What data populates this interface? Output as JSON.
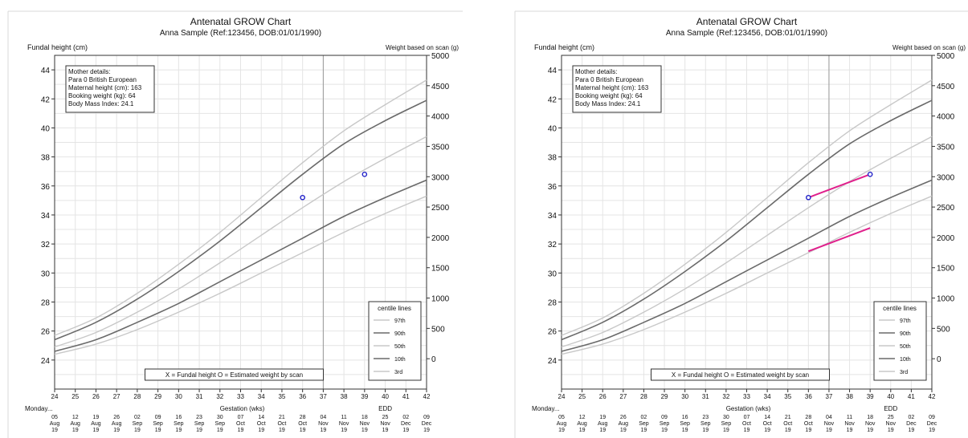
{
  "charts": [
    {
      "title": "Antenatal GROW Chart",
      "subtitle": "Anna Sample (Ref:123456, DOB:01/01/1990)",
      "left_axis_label": "Fundal height (cm)",
      "right_axis_label": "Weight based on scan (g)",
      "mother": {
        "heading": "Mother details:",
        "lines": [
          "Para 0  British European",
          "Maternal height (cm): 163",
          "Booking weight (kg): 64",
          "Body Mass Index: 24.1"
        ]
      },
      "bottom_legend": "X = Fundal height     O = Estimated weight by scan",
      "xlabel": "Gestation (wks)",
      "monday_label": "Monday...",
      "edd_label": "EDD",
      "centile_legend": {
        "heading": "centile lines",
        "items": [
          "97th",
          "90th",
          "50th",
          "10th",
          "3rd"
        ]
      }
    },
    {
      "title": "Antenatal GROW Chart",
      "subtitle": "Anna Sample (Ref:123456, DOB:01/01/1990)",
      "left_axis_label": "Fundal height (cm)",
      "right_axis_label": "Weight based on scan (g)",
      "mother": {
        "heading": "Mother details:",
        "lines": [
          "Para 0  British European",
          "Maternal height (cm): 163",
          "Booking weight (kg): 64",
          "Body Mass Index: 24.1"
        ]
      },
      "bottom_legend": "X = Fundal height     O = Estimated weight by scan",
      "xlabel": "Gestation (wks)",
      "monday_label": "Monday...",
      "edd_label": "EDD",
      "centile_legend": {
        "heading": "centile lines",
        "items": [
          "97th",
          "90th",
          "50th",
          "10th",
          "3rd"
        ]
      }
    }
  ],
  "chart_data": [
    {
      "type": "line",
      "xlim": [
        24,
        42
      ],
      "ylim_left": [
        22,
        45
      ],
      "ylim_right": [
        -500,
        5000
      ],
      "x_ticks": [
        24,
        25,
        26,
        27,
        28,
        29,
        30,
        31,
        32,
        33,
        34,
        35,
        36,
        37,
        38,
        39,
        40,
        41,
        42
      ],
      "y_ticks_left": [
        24,
        26,
        28,
        30,
        32,
        34,
        36,
        38,
        40,
        42,
        44
      ],
      "y_ticks_right": [
        0,
        500,
        1000,
        1500,
        2000,
        2500,
        3000,
        3500,
        4000,
        4500,
        5000
      ],
      "dates": [
        [
          "05",
          "Aug",
          "19"
        ],
        [
          "12",
          "Aug",
          "19"
        ],
        [
          "19",
          "Aug",
          "19"
        ],
        [
          "26",
          "Aug",
          "19"
        ],
        [
          "02",
          "Sep",
          "19"
        ],
        [
          "09",
          "Sep",
          "19"
        ],
        [
          "16",
          "Sep",
          "19"
        ],
        [
          "23",
          "Sep",
          "19"
        ],
        [
          "30",
          "Sep",
          "19"
        ],
        [
          "07",
          "Oct",
          "19"
        ],
        [
          "14",
          "Oct",
          "19"
        ],
        [
          "21",
          "Oct",
          "19"
        ],
        [
          "28",
          "Oct",
          "19"
        ],
        [
          "04",
          "Nov",
          "19"
        ],
        [
          "11",
          "Nov",
          "19"
        ],
        [
          "18",
          "Nov",
          "19"
        ],
        [
          "25",
          "Nov",
          "19"
        ],
        [
          "02",
          "Dec",
          "19"
        ],
        [
          "09",
          "Dec",
          "19"
        ]
      ],
      "centiles": [
        {
          "name": "97th",
          "color": "#c8c8c8",
          "x": [
            24,
            26,
            28,
            30,
            32,
            34,
            36,
            38,
            40,
            42
          ],
          "y": [
            25.7,
            26.9,
            28.6,
            30.6,
            32.8,
            35.2,
            37.6,
            39.8,
            41.6,
            43.3
          ]
        },
        {
          "name": "90th",
          "color": "#6a6a6a",
          "x": [
            24,
            26,
            28,
            30,
            32,
            34,
            36,
            38,
            40,
            42
          ],
          "y": [
            25.4,
            26.6,
            28.2,
            30.1,
            32.2,
            34.5,
            36.8,
            38.9,
            40.5,
            41.9
          ]
        },
        {
          "name": "50th",
          "color": "#c8c8c8",
          "x": [
            24,
            26,
            28,
            30,
            32,
            34,
            36,
            38,
            40,
            42
          ],
          "y": [
            24.9,
            25.9,
            27.3,
            28.9,
            30.7,
            32.6,
            34.5,
            36.3,
            37.9,
            39.4
          ]
        },
        {
          "name": "10th",
          "color": "#6a6a6a",
          "x": [
            24,
            26,
            28,
            30,
            32,
            34,
            36,
            38,
            40,
            42
          ],
          "y": [
            24.6,
            25.4,
            26.6,
            27.9,
            29.4,
            30.9,
            32.4,
            33.9,
            35.2,
            36.4
          ]
        },
        {
          "name": "3rd",
          "color": "#c8c8c8",
          "x": [
            24,
            26,
            28,
            30,
            32,
            34,
            36,
            38,
            40,
            42
          ],
          "y": [
            24.4,
            25.1,
            26.1,
            27.3,
            28.6,
            30.0,
            31.4,
            32.8,
            34.1,
            35.3
          ]
        }
      ],
      "scan_points": [
        {
          "x": 36,
          "y": 35.2
        },
        {
          "x": 39,
          "y": 36.8
        }
      ],
      "trend_lines": []
    },
    {
      "type": "line",
      "xlim": [
        24,
        42
      ],
      "ylim_left": [
        22,
        45
      ],
      "ylim_right": [
        -500,
        5000
      ],
      "x_ticks": [
        24,
        25,
        26,
        27,
        28,
        29,
        30,
        31,
        32,
        33,
        34,
        35,
        36,
        37,
        38,
        39,
        40,
        41,
        42
      ],
      "y_ticks_left": [
        24,
        26,
        28,
        30,
        32,
        34,
        36,
        38,
        40,
        42,
        44
      ],
      "y_ticks_right": [
        0,
        500,
        1000,
        1500,
        2000,
        2500,
        3000,
        3500,
        4000,
        4500,
        5000
      ],
      "dates": [
        [
          "05",
          "Aug",
          "19"
        ],
        [
          "12",
          "Aug",
          "19"
        ],
        [
          "19",
          "Aug",
          "19"
        ],
        [
          "26",
          "Aug",
          "19"
        ],
        [
          "02",
          "Sep",
          "19"
        ],
        [
          "09",
          "Sep",
          "19"
        ],
        [
          "16",
          "Sep",
          "19"
        ],
        [
          "23",
          "Sep",
          "19"
        ],
        [
          "30",
          "Sep",
          "19"
        ],
        [
          "07",
          "Oct",
          "19"
        ],
        [
          "14",
          "Oct",
          "19"
        ],
        [
          "21",
          "Oct",
          "19"
        ],
        [
          "28",
          "Oct",
          "19"
        ],
        [
          "04",
          "Nov",
          "19"
        ],
        [
          "11",
          "Nov",
          "19"
        ],
        [
          "18",
          "Nov",
          "19"
        ],
        [
          "25",
          "Nov",
          "19"
        ],
        [
          "02",
          "Dec",
          "19"
        ],
        [
          "09",
          "Dec",
          "19"
        ]
      ],
      "centiles": [
        {
          "name": "97th",
          "color": "#c8c8c8",
          "x": [
            24,
            26,
            28,
            30,
            32,
            34,
            36,
            38,
            40,
            42
          ],
          "y": [
            25.7,
            26.9,
            28.6,
            30.6,
            32.8,
            35.2,
            37.6,
            39.8,
            41.6,
            43.3
          ]
        },
        {
          "name": "90th",
          "color": "#6a6a6a",
          "x": [
            24,
            26,
            28,
            30,
            32,
            34,
            36,
            38,
            40,
            42
          ],
          "y": [
            25.4,
            26.6,
            28.2,
            30.1,
            32.2,
            34.5,
            36.8,
            38.9,
            40.5,
            41.9
          ]
        },
        {
          "name": "50th",
          "color": "#c8c8c8",
          "x": [
            24,
            26,
            28,
            30,
            32,
            34,
            36,
            38,
            40,
            42
          ],
          "y": [
            24.9,
            25.9,
            27.3,
            28.9,
            30.7,
            32.6,
            34.5,
            36.3,
            37.9,
            39.4
          ]
        },
        {
          "name": "10th",
          "color": "#6a6a6a",
          "x": [
            24,
            26,
            28,
            30,
            32,
            34,
            36,
            38,
            40,
            42
          ],
          "y": [
            24.6,
            25.4,
            26.6,
            27.9,
            29.4,
            30.9,
            32.4,
            33.9,
            35.2,
            36.4
          ]
        },
        {
          "name": "3rd",
          "color": "#c8c8c8",
          "x": [
            24,
            26,
            28,
            30,
            32,
            34,
            36,
            38,
            40,
            42
          ],
          "y": [
            24.4,
            25.1,
            26.1,
            27.3,
            28.6,
            30.0,
            31.4,
            32.8,
            34.1,
            35.3
          ]
        }
      ],
      "scan_points": [
        {
          "x": 36,
          "y": 35.2
        },
        {
          "x": 39,
          "y": 36.8
        }
      ],
      "trend_lines": [
        {
          "color": "#e0208c",
          "x": [
            36,
            39
          ],
          "y": [
            35.2,
            36.8
          ]
        },
        {
          "color": "#e0208c",
          "x": [
            36,
            39
          ],
          "y": [
            31.5,
            33.1
          ]
        }
      ]
    }
  ],
  "colors": {
    "scan_point": "#2020c8",
    "trend": "#e0208c",
    "ref_line": "#999999",
    "grid": "#e4e4e4"
  }
}
